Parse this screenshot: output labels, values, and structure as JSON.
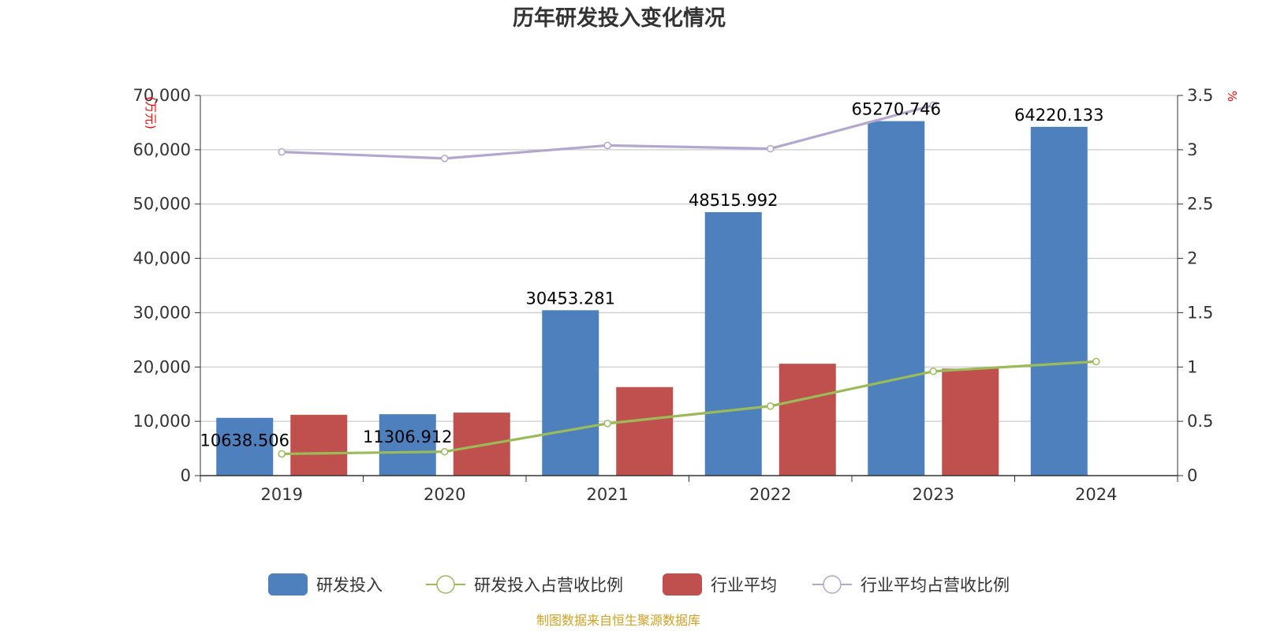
{
  "chart_data": {
    "type": "bar",
    "title": "历年研发投入变化情况",
    "categories": [
      "2019",
      "2020",
      "2021",
      "2022",
      "2023",
      "2024"
    ],
    "y_left": {
      "unit": "(万元)",
      "min": 0,
      "max": 70000,
      "ticks": [
        0,
        10000,
        20000,
        30000,
        40000,
        50000,
        60000,
        70000
      ],
      "tick_labels": [
        "0",
        "10,000",
        "20,000",
        "30,000",
        "40,000",
        "50,000",
        "60,000",
        "70,000"
      ]
    },
    "y_right": {
      "unit": "%",
      "min": 0,
      "max": 3.5,
      "ticks": [
        0,
        0.5,
        1,
        1.5,
        2,
        2.5,
        3,
        3.5
      ],
      "tick_labels": [
        "0",
        "0.5",
        "1",
        "1.5",
        "2",
        "2.5",
        "3",
        "3.5"
      ]
    },
    "grid": true,
    "legend_position": "bottom",
    "series": [
      {
        "name": "研发投入",
        "type": "bar",
        "axis": "left",
        "color": "#4e80bd",
        "values": [
          10638.506,
          11306.912,
          30453.281,
          48515.992,
          65270.746,
          64220.133
        ],
        "labels": [
          "10638.506",
          "11306.912",
          "30453.281",
          "48515.992",
          "65270.746",
          "64220.133"
        ]
      },
      {
        "name": "研发投入占营收比例",
        "type": "line",
        "axis": "right",
        "color": "#9bbb59",
        "values": [
          0.2,
          0.22,
          0.48,
          0.64,
          0.96,
          1.05
        ]
      },
      {
        "name": "行业平均",
        "type": "bar",
        "axis": "left",
        "color": "#c0504d",
        "values": [
          11200,
          11600,
          16300,
          20600,
          19700,
          null
        ]
      },
      {
        "name": "行业平均占营收比例",
        "type": "line",
        "axis": "right",
        "color": "#b3a6cf",
        "values": [
          2.98,
          2.92,
          3.04,
          3.01,
          3.41,
          null
        ]
      }
    ]
  },
  "footer": {
    "source": "制图数据来自恒生聚源数据库"
  }
}
